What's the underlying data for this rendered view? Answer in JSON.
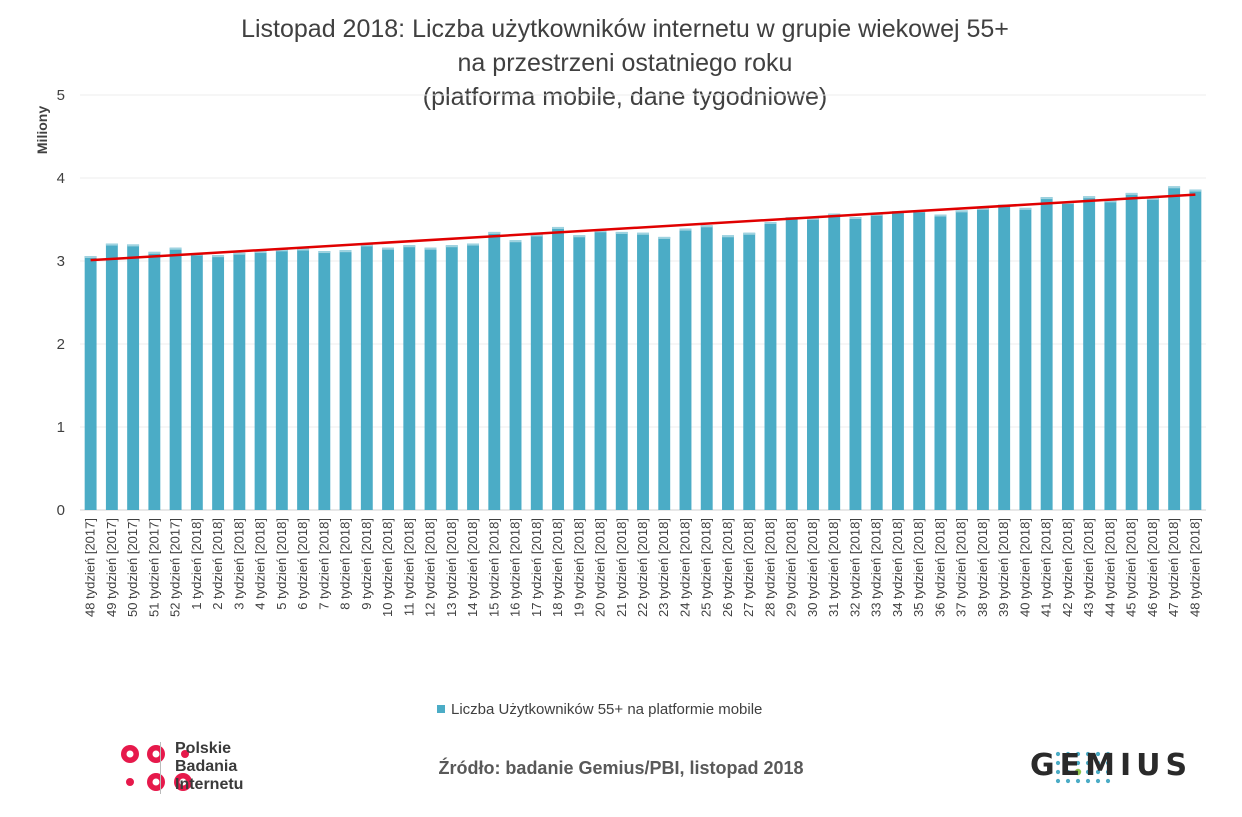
{
  "chart_data": {
    "type": "bar",
    "title_lines": [
      "Listopad 2018: Liczba użytkowników internetu w grupie wiekowej 55+",
      "na przestrzeni ostatniego roku",
      "(platforma mobile, dane tygodniowe)"
    ],
    "ylabel": "Miliony",
    "ylim": [
      0,
      5
    ],
    "yticks": [
      "0",
      "1",
      "2",
      "3",
      "4",
      "5"
    ],
    "grid": true,
    "legend_position": "bottom",
    "categories": [
      "48 tydzień [2017]",
      "49 tydzień [2017]",
      "50 tydzień [2017]",
      "51 tydzień [2017]",
      "52 tydzień [2017]",
      "1 tydzień [2018]",
      "2 tydzień [2018]",
      "3 tydzień [2018]",
      "4 tydzień [2018]",
      "5 tydzień [2018]",
      "6 tydzień [2018]",
      "7 tydzień [2018]",
      "8 tydzień [2018]",
      "9 tydzień [2018]",
      "10 tydzień [2018]",
      "11 tydzień [2018]",
      "12 tydzień [2018]",
      "13 tydzień [2018]",
      "14 tydzień [2018]",
      "15 tydzień [2018]",
      "16 tydzień [2018]",
      "17 tydzień [2018]",
      "18 tydzień [2018]",
      "19 tydzień [2018]",
      "20 tydzień [2018]",
      "21 tydzień [2018]",
      "22 tydzień [2018]",
      "23 tydzień [2018]",
      "24 tydzień [2018]",
      "25 tydzień [2018]",
      "26 tydzień [2018]",
      "27 tydzień [2018]",
      "28 tydzień [2018]",
      "29 tydzień [2018]",
      "30 tydzień [2018]",
      "31 tydzień [2018]",
      "32 tydzień [2018]",
      "33 tydzień [2018]",
      "34 tydzień [2018]",
      "35 tydzień [2018]",
      "36 tydzień [2018]",
      "37 tydzień [2018]",
      "38 tydzień [2018]",
      "39 tydzień [2018]",
      "40 tydzień [2018]",
      "41 tydzień [2018]",
      "42 tydzień [2018]",
      "43 tydzień [2018]",
      "44 tydzień [2018]",
      "45 tydzień [2018]",
      "46 tydzień [2018]",
      "47 tydzień [2018]",
      "48 tydzień [2018]"
    ],
    "series": [
      {
        "name": "Liczba Użytkowników 55+ na platformie mobile",
        "color": "#4bacc6",
        "values": [
          3.06,
          3.21,
          3.2,
          3.11,
          3.16,
          3.09,
          3.07,
          3.1,
          3.12,
          3.14,
          3.15,
          3.12,
          3.13,
          3.2,
          3.16,
          3.19,
          3.16,
          3.19,
          3.21,
          3.35,
          3.25,
          3.32,
          3.41,
          3.31,
          3.37,
          3.35,
          3.34,
          3.29,
          3.39,
          3.43,
          3.31,
          3.34,
          3.47,
          3.53,
          3.52,
          3.57,
          3.53,
          3.57,
          3.6,
          3.61,
          3.56,
          3.61,
          3.64,
          3.68,
          3.64,
          3.77,
          3.71,
          3.78,
          3.73,
          3.82,
          3.76,
          3.9,
          3.86
        ]
      }
    ],
    "trendline": {
      "color": "#e00000",
      "start": 3.01,
      "end": 3.8
    }
  },
  "source_text": "Źródło: badanie Gemius/PBI, listopad 2018",
  "logos": {
    "pbi_lines": [
      "Polskie",
      "Badania",
      "Internetu"
    ],
    "pbi_color": "#e6194b",
    "gemius_word": "GEMIUS",
    "gemius_dot_colors": [
      "#4bacc6",
      "#8bc34a"
    ]
  }
}
